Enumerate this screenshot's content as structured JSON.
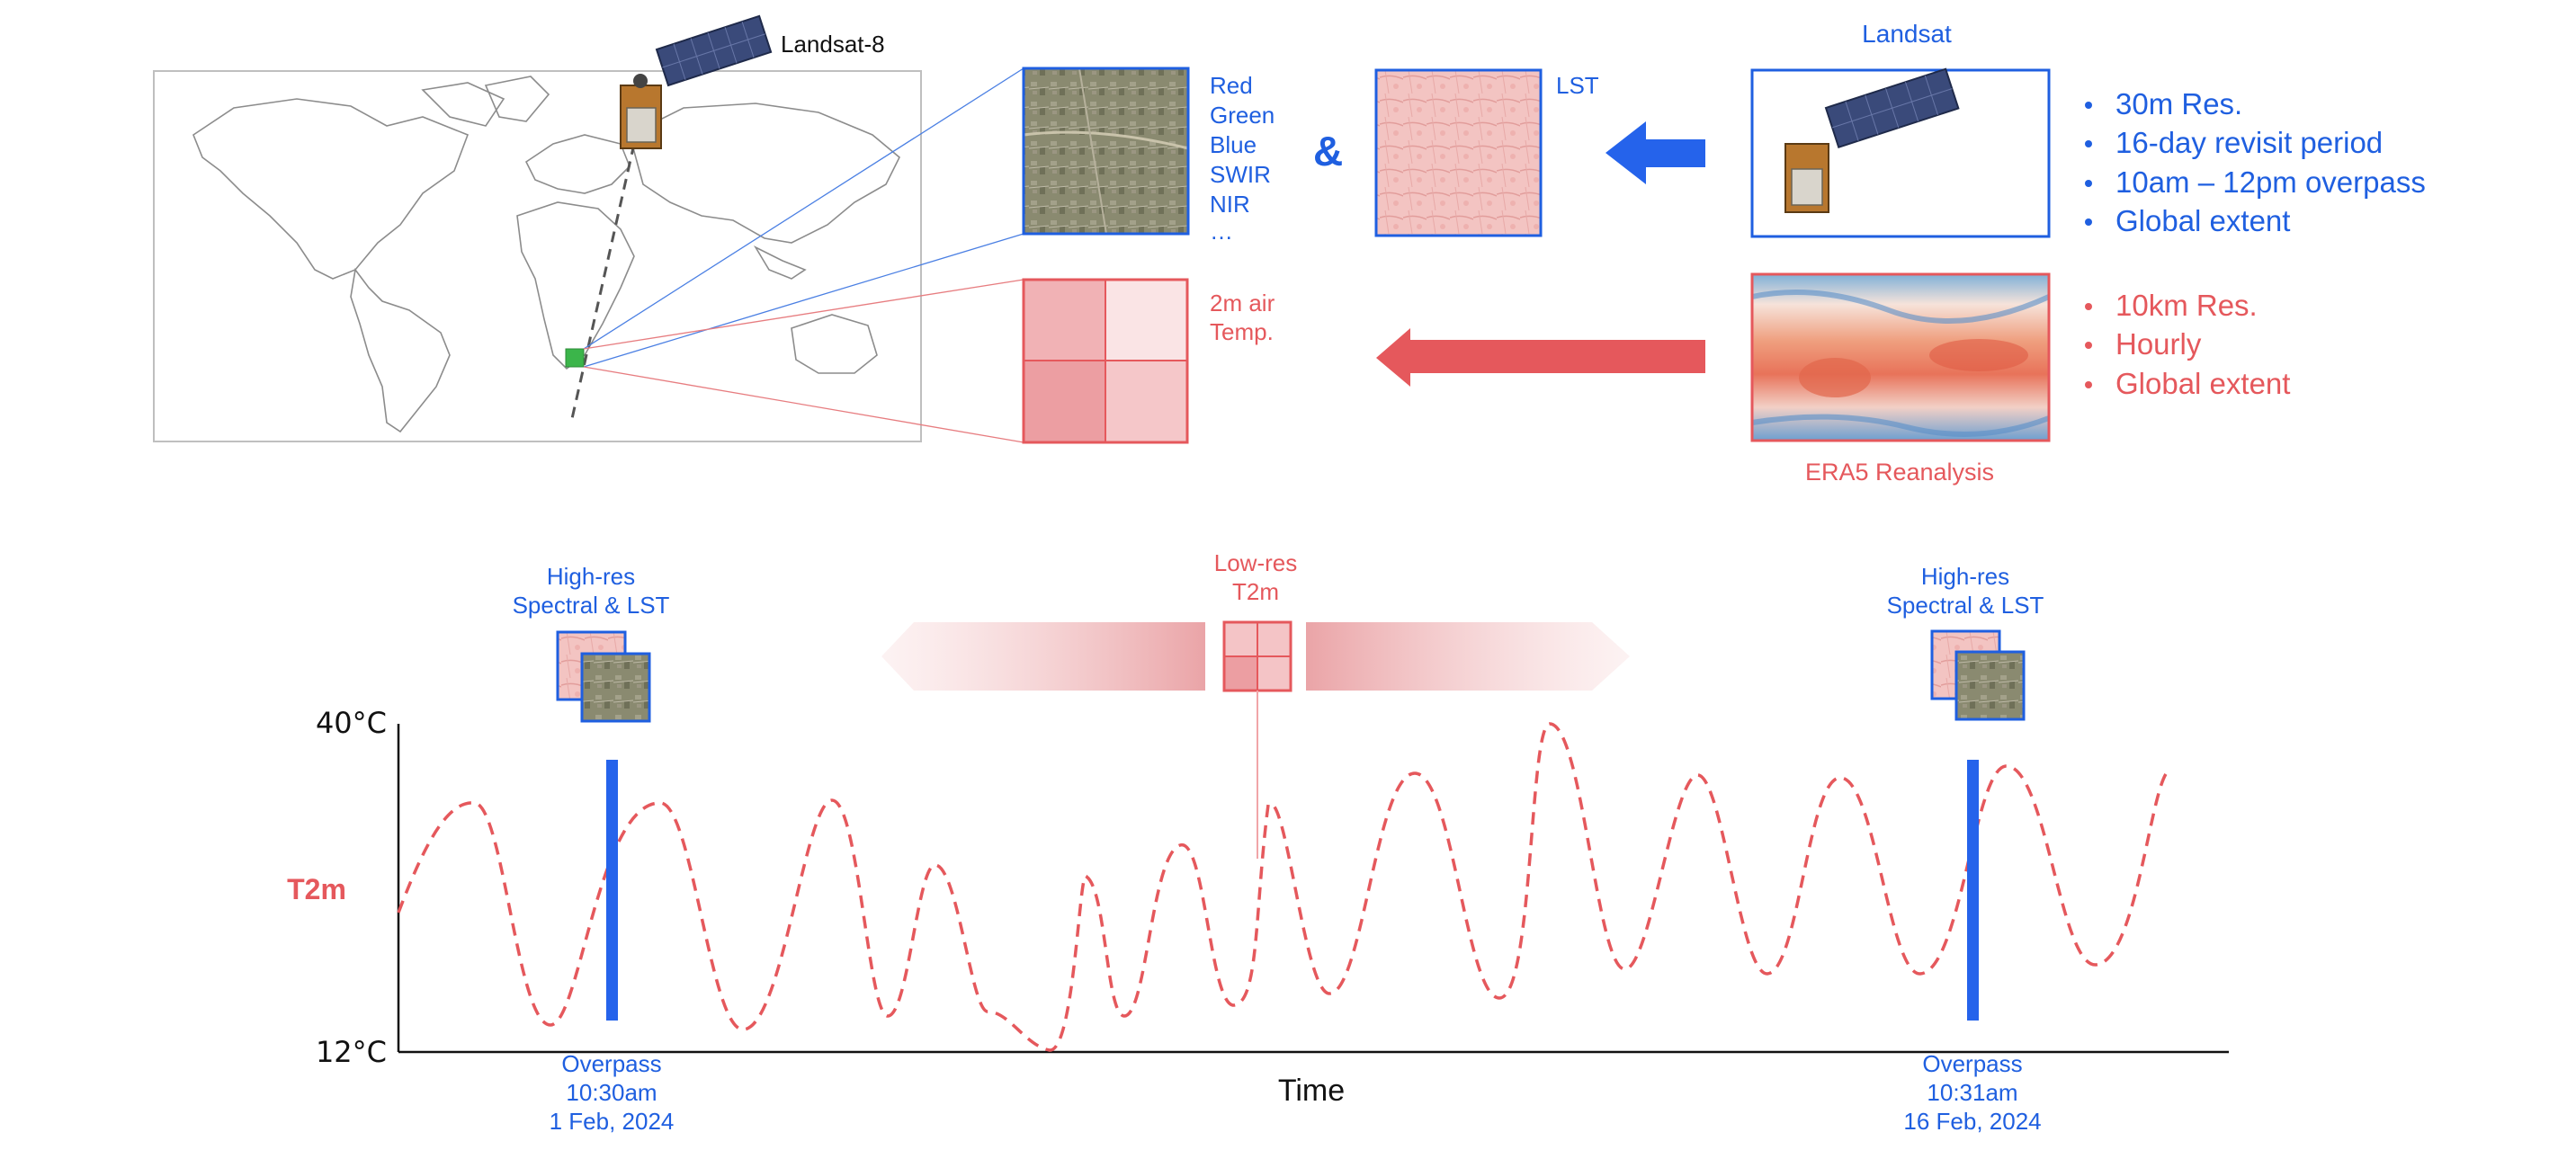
{
  "colors": {
    "blue": "#1f5fe0",
    "red": "#e5585c",
    "red_light": "#f3b3b6",
    "overpass_bar": "#2563eb",
    "roi_marker": "#3bb54a"
  },
  "icons": [
    "world-map",
    "satellite-icon",
    "satellite-image-thumbnail",
    "lst-heatmap-thumbnail",
    "era5-global-temperature-map",
    "grid-icon",
    "arrow-left-icon"
  ],
  "map": {
    "satellite_label": "Landsat-8"
  },
  "spectral": {
    "bands": [
      "Red",
      "Green",
      "Blue",
      "SWIR",
      "NIR",
      "…"
    ],
    "ampersand": "&",
    "lst_label": "LST"
  },
  "era_grid": {
    "label_line1": "2m air",
    "label_line2": "Temp."
  },
  "landsat_panel": {
    "title": "Landsat",
    "bullets": [
      "30m Res.",
      "16-day revisit period",
      "10am – 12pm overpass",
      "Global extent"
    ]
  },
  "era5_panel": {
    "caption": "ERA5 Reanalysis",
    "bullets": [
      "10km Res.",
      "Hourly",
      "Global extent"
    ]
  },
  "timeline": {
    "left_caption_line1": "High-res",
    "left_caption_line2": "Spectral & LST",
    "mid_caption_line1": "Low-res",
    "mid_caption_line2": "T2m",
    "right_caption_line1": "High-res",
    "right_caption_line2": "Spectral & LST",
    "y_top": "40°C",
    "y_bottom": "12°C",
    "y_label": "T2m",
    "x_label": "Time",
    "overpass1": [
      "Overpass",
      "10:30am",
      "1 Feb, 2024"
    ],
    "overpass2": [
      "Overpass",
      "10:31am",
      "16 Feb, 2024"
    ]
  }
}
